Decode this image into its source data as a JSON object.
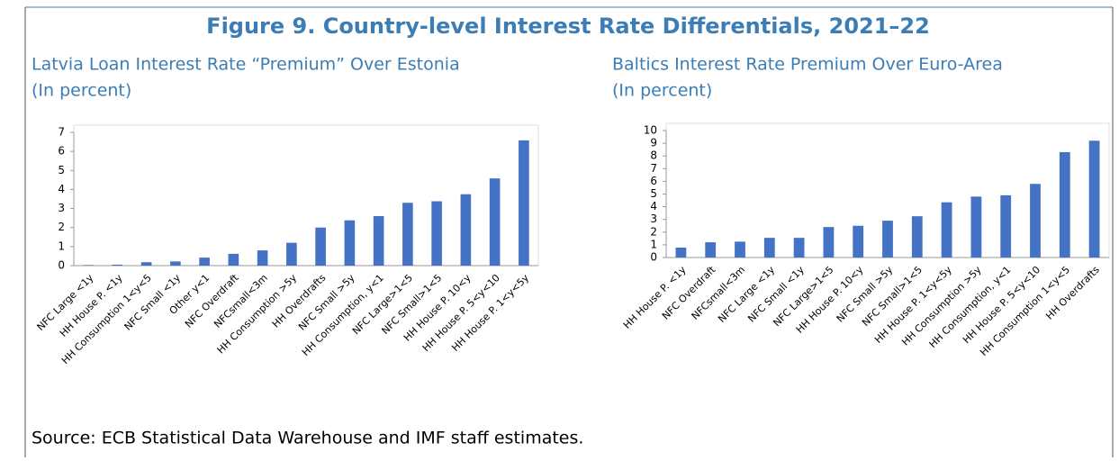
{
  "figure": {
    "title": "Figure 9. Country-level Interest Rate Differentials, 2021–22",
    "source": "Source: ECB Statistical Data Warehouse and IMF staff estimates."
  },
  "chart_data": [
    {
      "type": "bar",
      "title": "Latvia Loan Interest Rate “Premium” Over Estonia",
      "subtitle": "(In percent)",
      "color": "#4472c4",
      "categories": [
        "NFC Large <1y",
        "HH House P. <1y",
        "HH Consumption 1<y<5",
        "NFC Small <1y",
        "Other y<1",
        "NFC Overdraft",
        "NFCsmall<3m",
        "HH Consumption >5y",
        "HH Overdrafts",
        "NFC Small >5y",
        "HH Consumption, y<1",
        "NFC Large>1<5",
        "NFC Small>1<5",
        "HH House P. 10<y",
        "HH House P. 5<y<10",
        "HH House P. 1<y<5y"
      ],
      "values": [
        0.03,
        0.05,
        0.18,
        0.22,
        0.42,
        0.62,
        0.8,
        1.2,
        2.0,
        2.38,
        2.6,
        3.3,
        3.38,
        3.75,
        4.58,
        6.58
      ],
      "ylim": [
        0,
        7
      ],
      "yticks": [
        0,
        1,
        2,
        3,
        4,
        5,
        6,
        7
      ]
    },
    {
      "type": "bar",
      "title": "Baltics Interest Rate Premium Over Euro-Area",
      "subtitle": "(In percent)",
      "color": "#4472c4",
      "categories": [
        "HH House P. <1y",
        "NFC Overdraft",
        "NFCsmall<3m",
        "NFC Large <1y",
        "NFC Small <1y",
        "NFC Large>1<5",
        "HH House P. 10<y",
        "NFC Small >5y",
        "NFC Small>1<5",
        "HH House P. 1<y<5y",
        "HH Consumption >5y",
        "HH Consumption, y<1",
        "HH House P. 5<y<10",
        "HH Consumption 1<y<5",
        "HH Overdrafts"
      ],
      "values": [
        0.78,
        1.2,
        1.25,
        1.55,
        1.55,
        2.4,
        2.5,
        2.9,
        3.25,
        4.35,
        4.8,
        4.9,
        5.8,
        8.3,
        9.2
      ],
      "ylim": [
        0,
        10
      ],
      "yticks": [
        0,
        1,
        2,
        3,
        4,
        5,
        6,
        7,
        8,
        9,
        10
      ]
    }
  ]
}
